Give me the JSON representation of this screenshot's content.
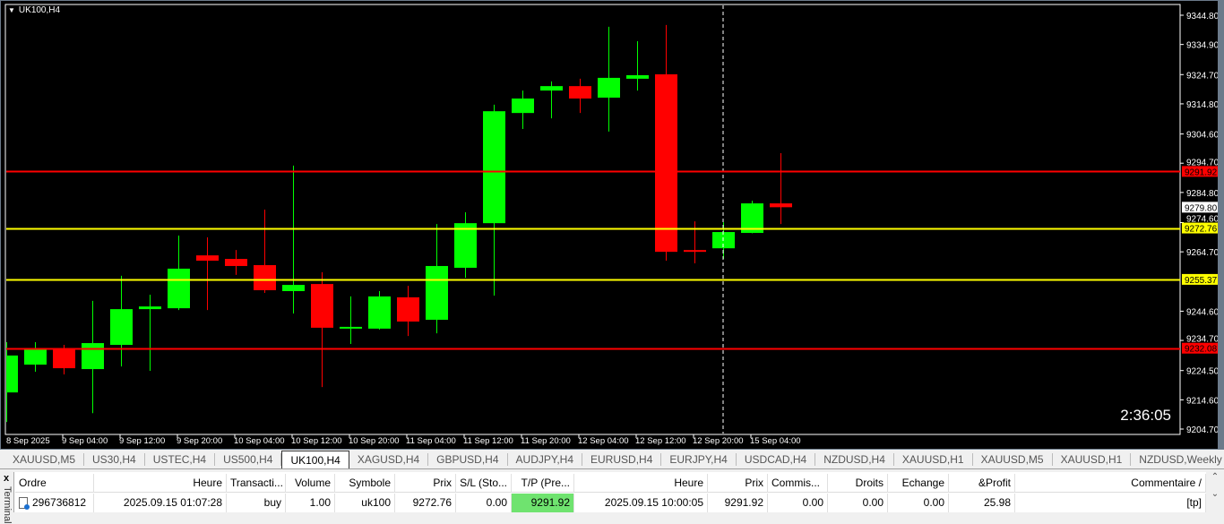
{
  "chart": {
    "title": "UK100,H4",
    "countdown": "2:36:05",
    "colors": {
      "bull": "#00ff00",
      "bear": "#ff0000",
      "background": "#000000",
      "support": "#ffff00",
      "tp_sl": "#ff0000"
    },
    "price_axis": {
      "min": 9204.7,
      "max": 9344.8,
      "ticks": [
        "9344.80",
        "9334.90",
        "9324.70",
        "9314.80",
        "9304.60",
        "9294.70",
        "9284.80",
        "9274.60",
        "9264.70",
        "9244.60",
        "9234.70",
        "9224.50",
        "9214.60",
        "9204.70"
      ]
    },
    "time_labels": [
      "8 Sep 2025",
      "9 Sep 04:00",
      "9 Sep 12:00",
      "9 Sep 20:00",
      "10 Sep 04:00",
      "10 Sep 12:00",
      "10 Sep 20:00",
      "11 Sep 04:00",
      "11 Sep 12:00",
      "11 Sep 20:00",
      "12 Sep 04:00",
      "12 Sep 12:00",
      "12 Sep 20:00",
      "15 Sep 04:00"
    ],
    "bid": "9279.80",
    "levels": [
      {
        "price": "9291.92",
        "color": "#ff0000"
      },
      {
        "price": "9272.76",
        "color": "#ffff00"
      },
      {
        "price": "9255.37",
        "color": "#ffff00"
      },
      {
        "price": "9232.08",
        "color": "#ff0000"
      }
    ],
    "candles": [
      [
        9217.1,
        9234.1,
        9207.1,
        9229.6
      ],
      [
        9226.5,
        9234.1,
        9224.1,
        9232.0
      ],
      [
        9231.7,
        9233.2,
        9223.2,
        9225.3
      ],
      [
        9225.0,
        9248.1,
        9210.1,
        9233.8
      ],
      [
        9233.2,
        9256.6,
        9225.9,
        9245.3
      ],
      [
        9245.3,
        9250.2,
        9224.4,
        9246.2
      ],
      [
        9245.6,
        9270.2,
        9245.0,
        9259.0
      ],
      [
        9263.5,
        9269.6,
        9245.0,
        9261.7
      ],
      [
        9262.3,
        9265.3,
        9256.9,
        9259.9
      ],
      [
        9260.2,
        9279.0,
        9250.8,
        9251.7
      ],
      [
        9251.4,
        9293.9,
        9243.8,
        9253.5
      ],
      [
        9253.8,
        9257.8,
        9218.9,
        9239.0
      ],
      [
        9238.7,
        9249.6,
        9233.5,
        9239.3
      ],
      [
        9238.7,
        9251.4,
        9238.4,
        9249.6
      ],
      [
        9249.3,
        9253.2,
        9236.2,
        9241.1
      ],
      [
        9241.7,
        9274.1,
        9237.1,
        9259.9
      ],
      [
        9259.3,
        9278.1,
        9255.9,
        9274.4
      ],
      [
        9274.4,
        9314.5,
        9249.9,
        9312.3
      ],
      [
        9311.7,
        9319.3,
        9306.3,
        9316.6
      ],
      [
        9319.3,
        9322.4,
        9309.9,
        9320.8
      ],
      [
        9320.8,
        9323.3,
        9311.7,
        9316.6
      ],
      [
        9316.9,
        9340.9,
        9305.4,
        9323.6
      ],
      [
        9323.3,
        9336.0,
        9319.3,
        9324.5
      ],
      [
        9324.8,
        9341.5,
        9261.7,
        9264.7
      ],
      [
        9265.3,
        9275.0,
        9260.8,
        9264.7
      ],
      [
        9265.9,
        9274.7,
        9262.3,
        9271.4
      ],
      [
        9271.1,
        9282.0,
        9271.0,
        9281.1
      ],
      [
        9281.1,
        9298.1,
        9274.1,
        9279.8
      ]
    ]
  },
  "tabs": [
    "XAUUSD,M5",
    "US30,H4",
    "USTEC,H4",
    "US500,H4",
    "UK100,H4",
    "XAGUSD,H4",
    "GBPUSD,H4",
    "AUDJPY,H4",
    "EURUSD,H4",
    "EURJPY,H4",
    "USDCAD,H4",
    "NZDUSD,H4",
    "XAUUSD,H1",
    "XAUUSD,M5",
    "XAUUSD,H1",
    "NZDUSD,Weekly"
  ],
  "active_tab": "UK100,H4",
  "terminal": {
    "close": "x",
    "side_label": "Terminal",
    "columns": [
      "Ordre",
      "Heure",
      "Transacti...",
      "Volume",
      "Symbole",
      "Prix",
      "S/L (Sto...",
      "T/P (Pre...",
      "Heure",
      "Prix",
      "Commis...",
      "Droits",
      "Echange",
      "&Profit",
      "Commentaire"
    ],
    "sort_indicator": "/",
    "rows": [
      [
        "296736812",
        "2025.09.15 01:07:28",
        "buy",
        "1.00",
        "uk100",
        "9272.76",
        "0.00",
        "9291.92",
        "2025.09.15 10:00:05",
        "9291.92",
        "0.00",
        "0.00",
        "0.00",
        "25.98",
        "[tp]"
      ]
    ]
  }
}
